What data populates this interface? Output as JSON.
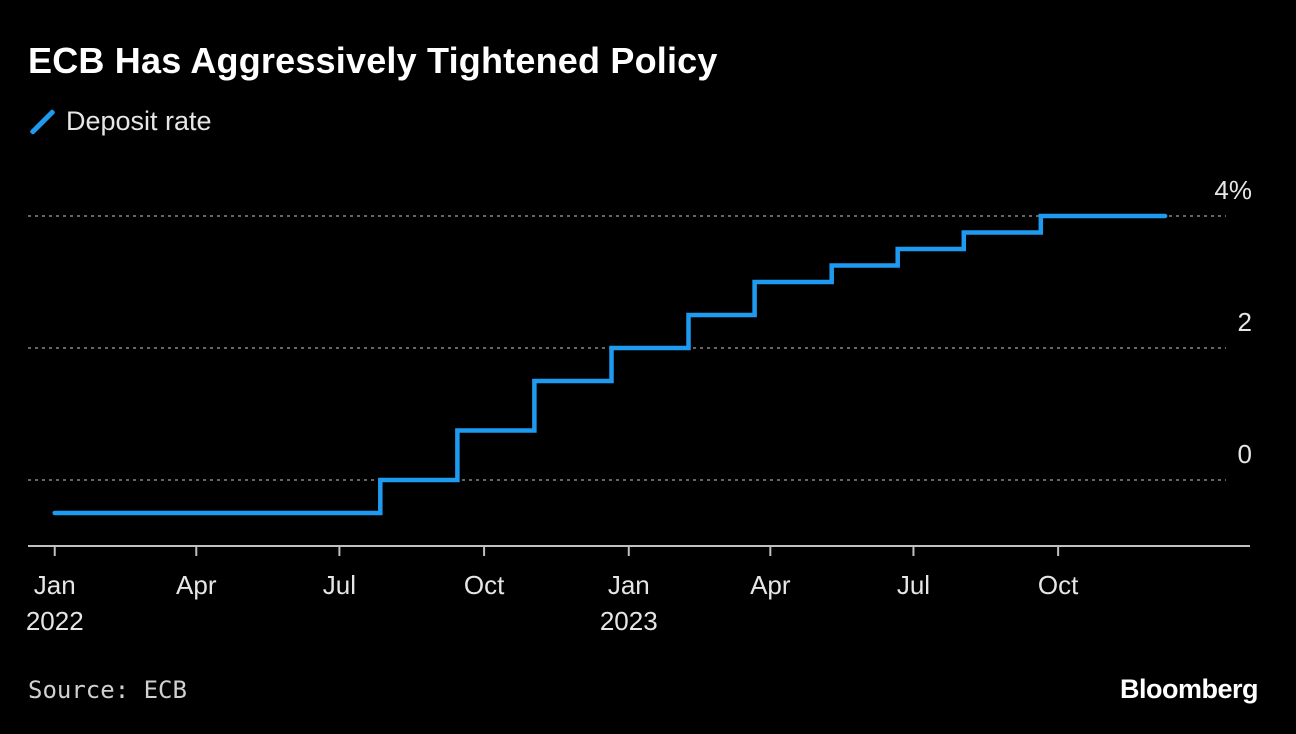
{
  "header": {
    "title": "ECB Has Aggressively Tightened Policy"
  },
  "legend": {
    "label": "Deposit rate",
    "icon": "line-icon"
  },
  "footer": {
    "source": "Source: ECB",
    "brand": "Bloomberg"
  },
  "colors": {
    "background": "#000000",
    "series": "#1e9bf0",
    "grid": "#888888",
    "axis": "#bfbfbf",
    "text": "#e6e6e6"
  },
  "chart_data": {
    "type": "line",
    "step": true,
    "title": "ECB Has Aggressively Tightened Policy",
    "xlabel": "",
    "ylabel": "",
    "ylim": [
      -1,
      5
    ],
    "xlim": [
      "2021-12-15",
      "2024-01-31"
    ],
    "y_ticks": [
      {
        "value": 0,
        "label": "0"
      },
      {
        "value": 2,
        "label": "2"
      },
      {
        "value": 4,
        "label": "4%"
      }
    ],
    "x_ticks": [
      {
        "date": "2022-01-01",
        "label": "Jan",
        "year": "2022"
      },
      {
        "date": "2022-04-01",
        "label": "Apr",
        "year": ""
      },
      {
        "date": "2022-07-01",
        "label": "Jul",
        "year": ""
      },
      {
        "date": "2022-10-01",
        "label": "Oct",
        "year": ""
      },
      {
        "date": "2023-01-01",
        "label": "Jan",
        "year": "2023"
      },
      {
        "date": "2023-04-01",
        "label": "Apr",
        "year": ""
      },
      {
        "date": "2023-07-01",
        "label": "Jul",
        "year": ""
      },
      {
        "date": "2023-10-01",
        "label": "Oct",
        "year": ""
      }
    ],
    "series": [
      {
        "name": "Deposit rate",
        "points": [
          {
            "date": "2022-01-01",
            "value": -0.5
          },
          {
            "date": "2022-07-27",
            "value": 0.0
          },
          {
            "date": "2022-09-14",
            "value": 0.75
          },
          {
            "date": "2022-11-02",
            "value": 1.5
          },
          {
            "date": "2022-12-21",
            "value": 2.0
          },
          {
            "date": "2023-02-08",
            "value": 2.5
          },
          {
            "date": "2023-03-22",
            "value": 3.0
          },
          {
            "date": "2023-05-10",
            "value": 3.25
          },
          {
            "date": "2023-06-21",
            "value": 3.5
          },
          {
            "date": "2023-08-02",
            "value": 3.75
          },
          {
            "date": "2023-09-20",
            "value": 4.0
          },
          {
            "date": "2023-12-08",
            "value": 4.0
          }
        ]
      }
    ]
  }
}
